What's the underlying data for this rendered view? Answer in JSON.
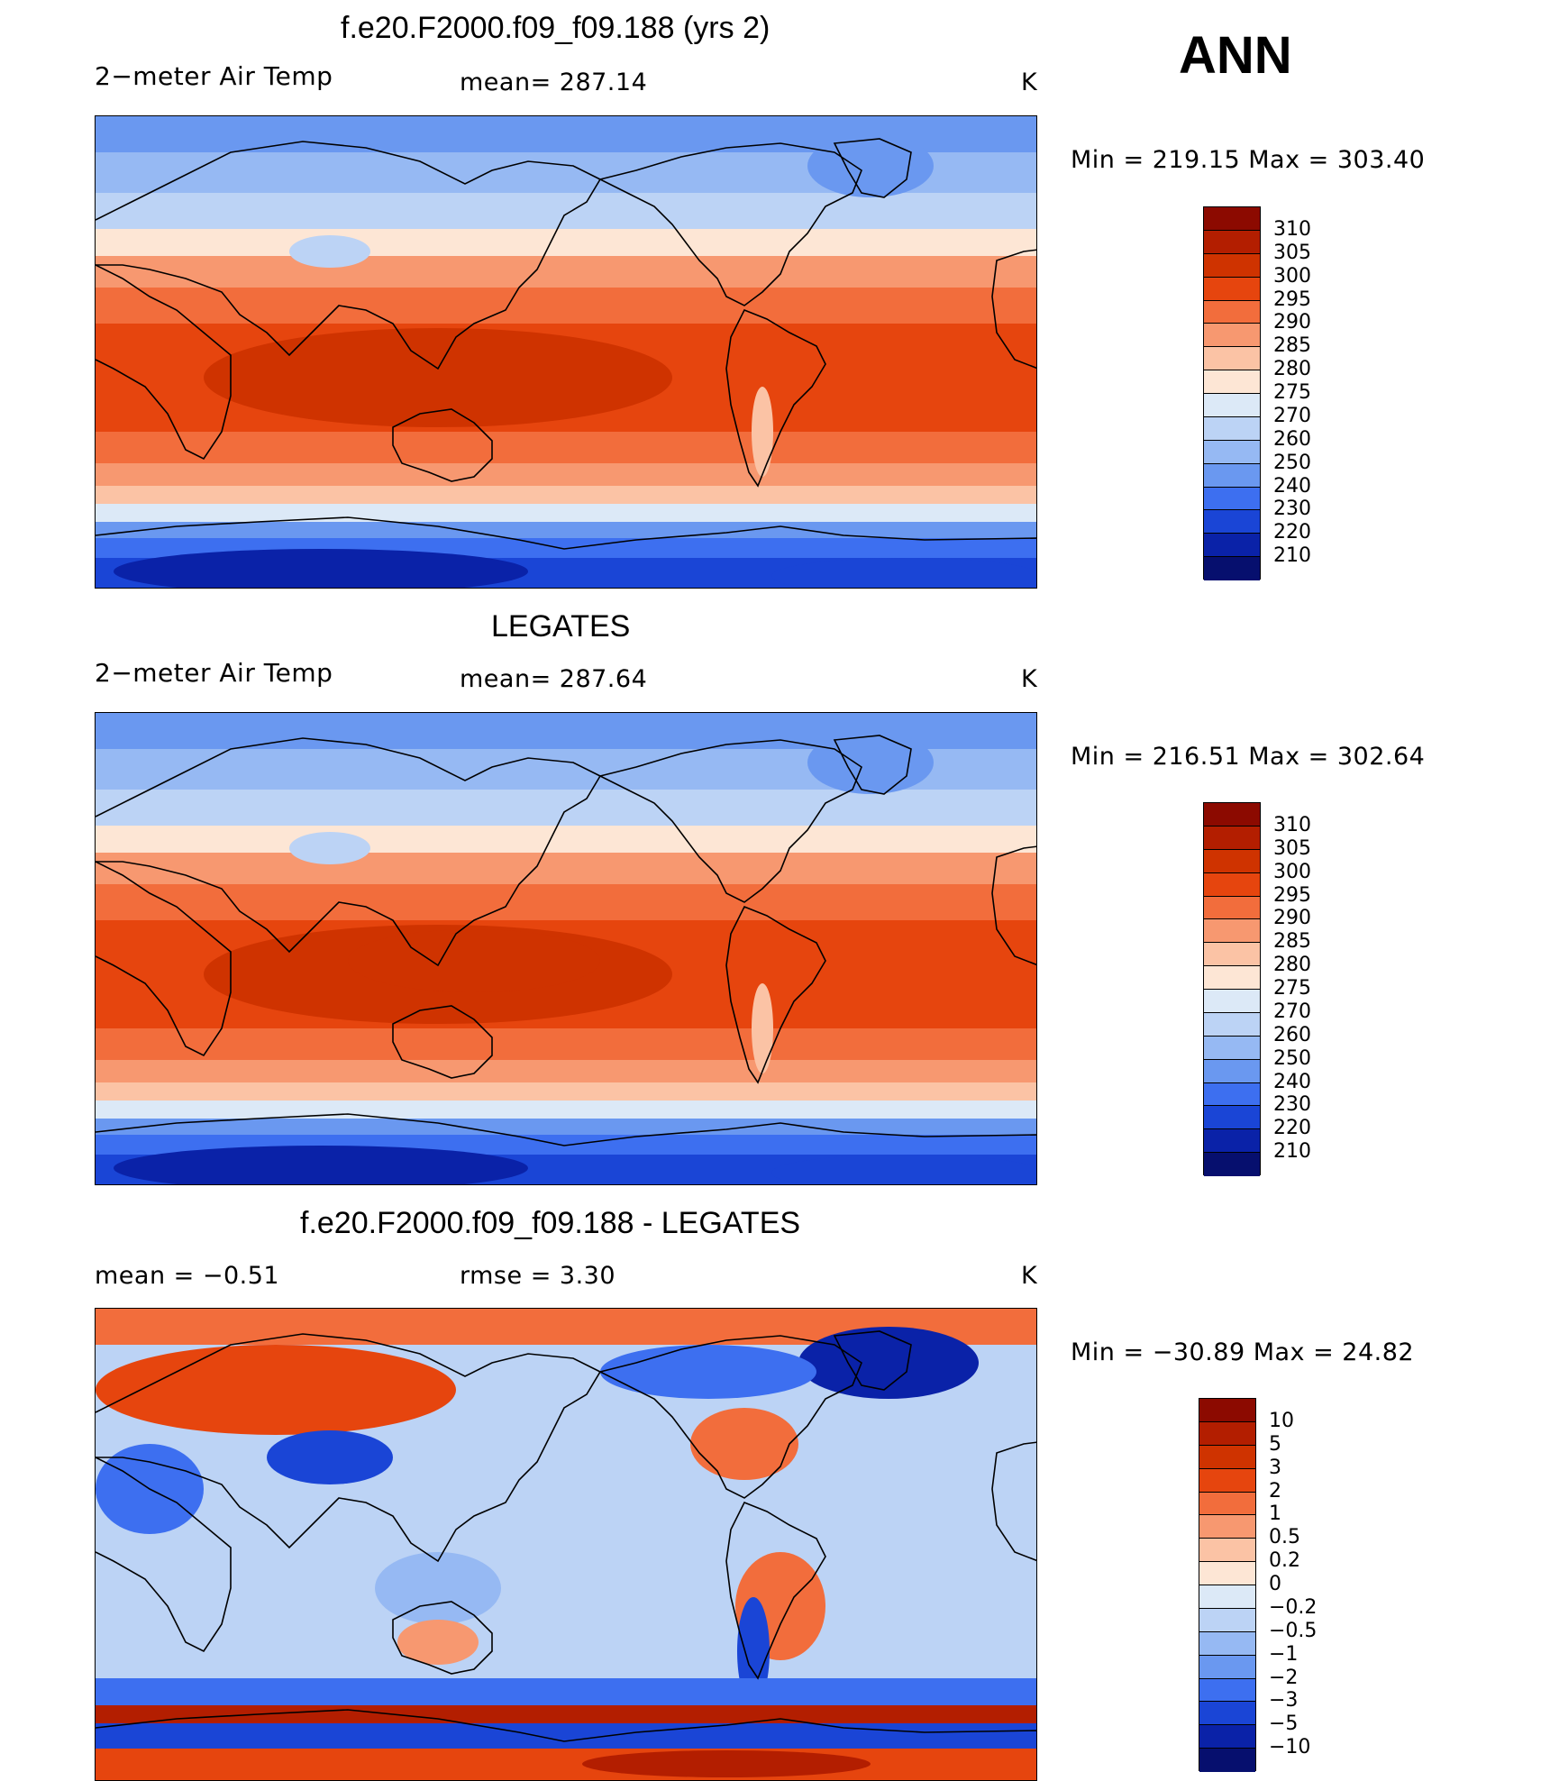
{
  "season": "ANN",
  "panels": [
    {
      "id": "model",
      "title": "f.e20.F2000.f09_f09.188 (yrs 2)",
      "left_label": "2−meter Air Temp",
      "center_label": "mean=  287.14",
      "right_label": "K",
      "minmax": "Min  =  219.15  Max  =  303.40",
      "colorbar": {
        "labels": [
          "310",
          "305",
          "300",
          "295",
          "290",
          "285",
          "280",
          "275",
          "270",
          "260",
          "250",
          "240",
          "230",
          "220",
          "210"
        ],
        "colors": [
          "#8c0a00",
          "#b31e00",
          "#cf3300",
          "#e6450e",
          "#f26d3c",
          "#f79870",
          "#fbc3a5",
          "#fde6d5",
          "#dce9f7",
          "#bcd3f5",
          "#96b9f3",
          "#6a98f0",
          "#3d6ff0",
          "#1a45d6",
          "#0a22a8",
          "#060f6e"
        ]
      },
      "map": {
        "style": "model"
      }
    },
    {
      "id": "obs",
      "title": "LEGATES",
      "left_label": "2−meter Air Temp",
      "center_label": "mean=  287.64",
      "right_label": "K",
      "minmax": "Min  =  216.51  Max  =  302.64",
      "colorbar": {
        "labels": [
          "310",
          "305",
          "300",
          "295",
          "290",
          "285",
          "280",
          "275",
          "270",
          "260",
          "250",
          "240",
          "230",
          "220",
          "210"
        ],
        "colors": [
          "#8c0a00",
          "#b31e00",
          "#cf3300",
          "#e6450e",
          "#f26d3c",
          "#f79870",
          "#fbc3a5",
          "#fde6d5",
          "#dce9f7",
          "#bcd3f5",
          "#96b9f3",
          "#6a98f0",
          "#3d6ff0",
          "#1a45d6",
          "#0a22a8",
          "#060f6e"
        ]
      },
      "map": {
        "style": "obs"
      }
    },
    {
      "id": "diff",
      "title": "f.e20.F2000.f09_f09.188 - LEGATES",
      "left_label": "mean  =     −0.51",
      "center_label": "rmse  =      3.30",
      "right_label": "K",
      "minmax": "Min  =  −30.89  Max  =    24.82",
      "colorbar": {
        "labels": [
          "10",
          "5",
          "3",
          "2",
          "1",
          "0.5",
          "0.2",
          "0",
          "−0.2",
          "−0.5",
          "−1",
          "−2",
          "−3",
          "−5",
          "−10"
        ],
        "colors": [
          "#8c0a00",
          "#b31e00",
          "#cf3300",
          "#e6450e",
          "#f26d3c",
          "#f79870",
          "#fbc3a5",
          "#fde6d5",
          "#dce9f7",
          "#bcd3f5",
          "#96b9f3",
          "#6a98f0",
          "#3d6ff0",
          "#1a45d6",
          "#0a22a8",
          "#060f6e"
        ]
      },
      "map": {
        "style": "diff"
      }
    }
  ]
}
